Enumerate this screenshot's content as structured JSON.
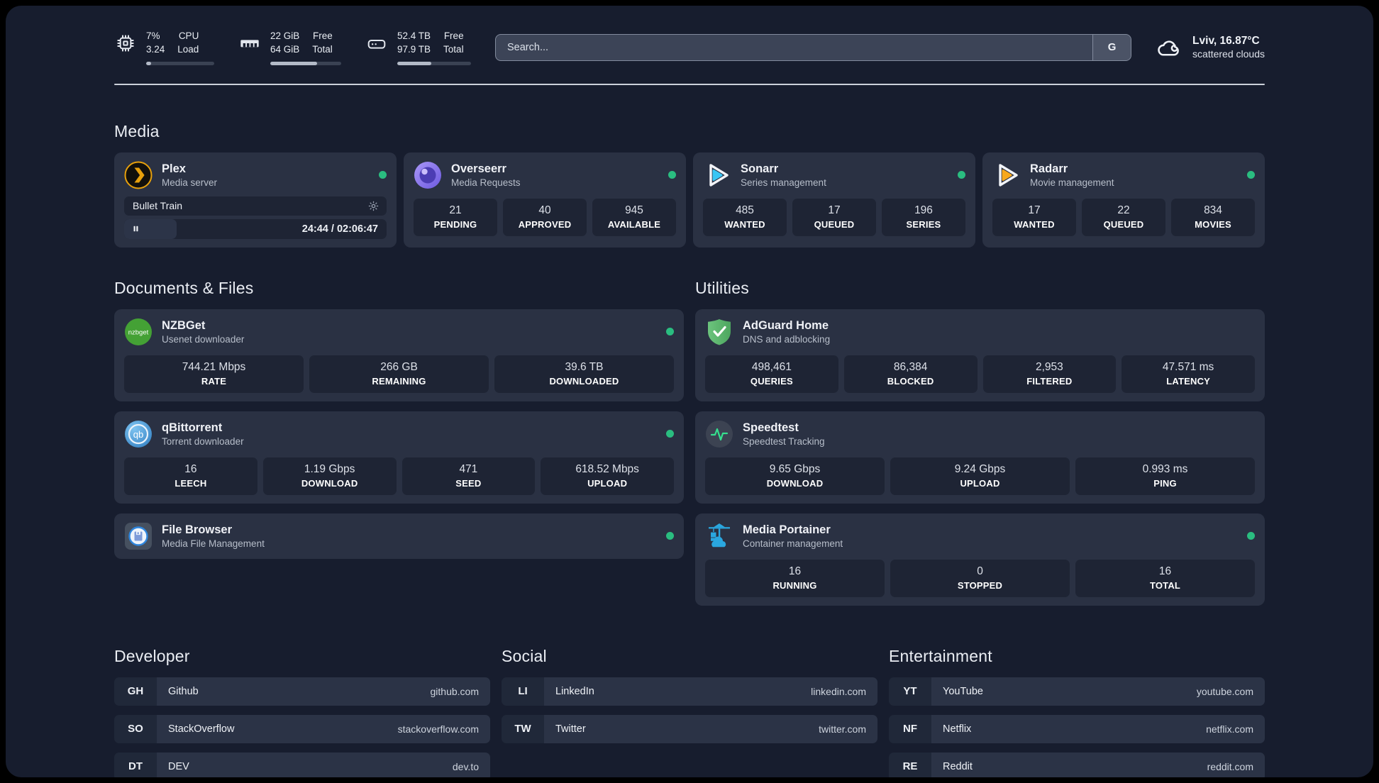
{
  "colors": {
    "status_online": "#2abd80",
    "plex_amber": "#e7a00c",
    "sonarr_cyan": "#39c6f4",
    "radarr_amber": "#f7a81b",
    "overseerr_purple": "#6d5ae0",
    "nzbget_green": "#44a135",
    "qbittorrent_blue": "#2e7cc0",
    "adguard_green": "#5cb56d",
    "speedtest_green": "#35e08e",
    "portainer_blue": "#2aa7e0"
  },
  "topbar": {
    "stats": [
      {
        "icon": "cpu-icon",
        "values": [
          "7%",
          "3.24"
        ],
        "labels": [
          "CPU",
          "Load"
        ],
        "progress": 7
      },
      {
        "icon": "ram-icon",
        "values": [
          "22 GiB",
          "64 GiB"
        ],
        "labels": [
          "Free",
          "Total"
        ],
        "progress": 66
      },
      {
        "icon": "disk-icon",
        "values": [
          "52.4 TB",
          "97.9 TB"
        ],
        "labels": [
          "Free",
          "Total"
        ],
        "progress": 46
      }
    ],
    "search": {
      "placeholder": "Search...",
      "engine_button": "G"
    },
    "weather": {
      "summary": "Lviv, 16.87°C",
      "condition": "scattered clouds"
    }
  },
  "icons": {
    "nzbget": "nzbget",
    "qbittorrent": "qb"
  },
  "sections": {
    "media": {
      "title": "Media",
      "apps": [
        {
          "name": "Plex",
          "description": "Media server",
          "now_playing": {
            "title": "Bullet Train",
            "time": "24:44 / 02:06:47",
            "progress": 20
          }
        },
        {
          "name": "Overseerr",
          "description": "Media Requests",
          "stats": [
            {
              "value": "21",
              "label": "PENDING"
            },
            {
              "value": "40",
              "label": "APPROVED"
            },
            {
              "value": "945",
              "label": "AVAILABLE"
            }
          ]
        },
        {
          "name": "Sonarr",
          "description": "Series management",
          "stats": [
            {
              "value": "485",
              "label": "WANTED"
            },
            {
              "value": "17",
              "label": "QUEUED"
            },
            {
              "value": "196",
              "label": "SERIES"
            }
          ]
        },
        {
          "name": "Radarr",
          "description": "Movie management",
          "stats": [
            {
              "value": "17",
              "label": "WANTED"
            },
            {
              "value": "22",
              "label": "QUEUED"
            },
            {
              "value": "834",
              "label": "MOVIES"
            }
          ]
        }
      ]
    },
    "documents": {
      "title": "Documents & Files",
      "apps": [
        {
          "name": "NZBGet",
          "description": "Usenet downloader",
          "stats": [
            {
              "value": "744.21 Mbps",
              "label": "RATE"
            },
            {
              "value": "266 GB",
              "label": "REMAINING"
            },
            {
              "value": "39.6 TB",
              "label": "DOWNLOADED"
            }
          ]
        },
        {
          "name": "qBittorrent",
          "description": "Torrent downloader",
          "stats": [
            {
              "value": "16",
              "label": "LEECH"
            },
            {
              "value": "1.19 Gbps",
              "label": "DOWNLOAD"
            },
            {
              "value": "471",
              "label": "SEED"
            },
            {
              "value": "618.52 Mbps",
              "label": "UPLOAD"
            }
          ]
        },
        {
          "name": "File Browser",
          "description": "Media File Management"
        }
      ]
    },
    "utilities": {
      "title": "Utilities",
      "apps": [
        {
          "name": "AdGuard Home",
          "description": "DNS and adblocking",
          "stats": [
            {
              "value": "498,461",
              "label": "QUERIES"
            },
            {
              "value": "86,384",
              "label": "BLOCKED"
            },
            {
              "value": "2,953",
              "label": "FILTERED"
            },
            {
              "value": "47.571 ms",
              "label": "LATENCY"
            }
          ]
        },
        {
          "name": "Speedtest",
          "description": "Speedtest Tracking",
          "stats": [
            {
              "value": "9.65 Gbps",
              "label": "DOWNLOAD"
            },
            {
              "value": "9.24 Gbps",
              "label": "UPLOAD"
            },
            {
              "value": "0.993 ms",
              "label": "PING"
            }
          ]
        },
        {
          "name": "Media Portainer",
          "description": "Container management",
          "stats": [
            {
              "value": "16",
              "label": "RUNNING"
            },
            {
              "value": "0",
              "label": "STOPPED"
            },
            {
              "value": "16",
              "label": "TOTAL"
            }
          ]
        }
      ]
    },
    "developer": {
      "title": "Developer",
      "links": [
        {
          "abbr": "GH",
          "name": "Github",
          "url": "github.com"
        },
        {
          "abbr": "SO",
          "name": "StackOverflow",
          "url": "stackoverflow.com"
        },
        {
          "abbr": "DT",
          "name": "DEV",
          "url": "dev.to"
        }
      ]
    },
    "social": {
      "title": "Social",
      "links": [
        {
          "abbr": "LI",
          "name": "LinkedIn",
          "url": "linkedin.com"
        },
        {
          "abbr": "TW",
          "name": "Twitter",
          "url": "twitter.com"
        }
      ]
    },
    "entertainment": {
      "title": "Entertainment",
      "links": [
        {
          "abbr": "YT",
          "name": "YouTube",
          "url": "youtube.com"
        },
        {
          "abbr": "NF",
          "name": "Netflix",
          "url": "netflix.com"
        },
        {
          "abbr": "RE",
          "name": "Reddit",
          "url": "reddit.com"
        }
      ]
    }
  }
}
